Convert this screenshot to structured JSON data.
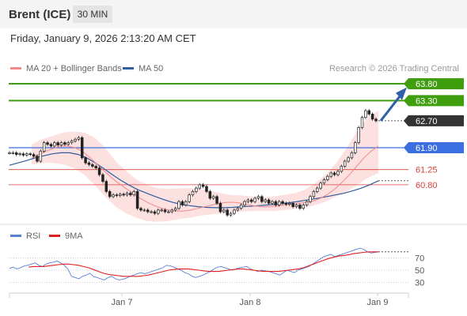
{
  "header": {
    "instrument": "Brent (ICE)",
    "timeframe": "30 MIN"
  },
  "datetime": "Friday, January 9, 2026 2:13:20 AM CET",
  "legend": {
    "bollinger": "MA 20 + Bollinger Bands",
    "ma50": "MA 50"
  },
  "credit": "Research © 2026 Trading Central",
  "rsi_legend": {
    "rsi": "RSI",
    "ma9": "9MA"
  },
  "colors": {
    "green": "#3f9e0e",
    "blue": "#3b6fe0",
    "red": "#d9403a",
    "dark": "#333333",
    "band": "#fde0e0",
    "candle": "#222222",
    "arrow": "#2e5fa8"
  },
  "chart_data": [
    {
      "type": "line",
      "title": "Brent (ICE)",
      "timeframe": "30 MIN",
      "x_labels": [
        "Jan 7",
        "Jan 8",
        "Jan 9"
      ],
      "ylim": [
        59.6,
        64.2
      ],
      "price_now": 62.7,
      "levels": [
        {
          "label": "63.80",
          "value": 63.8,
          "kind": "resistance",
          "color": "#3f9e0e"
        },
        {
          "label": "63.30",
          "value": 63.3,
          "kind": "resistance",
          "color": "#3f9e0e"
        },
        {
          "label": "62.70",
          "value": 62.7,
          "kind": "last",
          "color": "#333333"
        },
        {
          "label": "61.90",
          "value": 61.9,
          "kind": "pivot",
          "color": "#3b6fe0"
        },
        {
          "label": "61.25",
          "value": 61.25,
          "kind": "support",
          "color": "#d9403a"
        },
        {
          "label": "60.80",
          "value": 60.8,
          "kind": "support",
          "color": "#d9403a"
        }
      ],
      "close_series": [
        61.75,
        61.75,
        61.7,
        61.72,
        61.68,
        61.72,
        61.7,
        61.65,
        61.5,
        61.8,
        62.05,
        62.0,
        61.95,
        62.05,
        61.98,
        62.05,
        62.0,
        62.05,
        62.1,
        62.15,
        62.2,
        61.6,
        61.45,
        61.4,
        61.35,
        61.3,
        61.1,
        60.9,
        60.6,
        60.45,
        60.5,
        60.48,
        60.52,
        60.5,
        60.55,
        60.5,
        60.6,
        60.1,
        60.05,
        60.05,
        60.0,
        60.0,
        59.95,
        60.05,
        60.05,
        60.0,
        60.0,
        60.05,
        60.1,
        60.3,
        60.2,
        60.3,
        60.5,
        60.6,
        60.7,
        60.8,
        60.75,
        60.6,
        60.4,
        60.45,
        60.25,
        60.0,
        60.05,
        59.9,
        59.95,
        60.05,
        60.1,
        60.2,
        60.3,
        60.35,
        60.3,
        60.4,
        60.45,
        60.3,
        60.35,
        60.25,
        60.3,
        60.2,
        60.3,
        60.25,
        60.22,
        60.25,
        60.15,
        60.2,
        60.1,
        60.2,
        60.3,
        60.45,
        60.6,
        60.7,
        60.85,
        60.95,
        61.05,
        61.15,
        61.1,
        61.2,
        61.35,
        61.5,
        61.6,
        61.75,
        62.05,
        62.5,
        62.8,
        63.0,
        62.9,
        62.75,
        62.7
      ],
      "ma20_series": [
        61.6,
        61.7,
        61.8,
        61.88,
        61.95,
        61.95,
        61.9,
        61.8,
        61.62,
        61.42,
        61.22,
        61.02,
        60.85,
        60.7,
        60.55,
        60.4,
        60.28,
        60.18,
        60.1,
        60.05,
        60.02,
        60.02,
        60.05,
        60.1,
        60.15,
        60.2,
        60.25,
        60.28,
        60.28,
        60.25,
        60.2,
        60.17,
        60.15,
        60.15,
        60.17,
        60.2,
        60.22,
        60.25,
        60.28,
        60.32,
        60.4,
        60.52,
        60.68,
        60.88,
        61.1,
        61.35,
        61.6,
        61.8,
        61.95
      ],
      "ma50_series": [
        61.38,
        61.45,
        61.52,
        61.6,
        61.66,
        61.72,
        61.75,
        61.75,
        61.7,
        61.6,
        61.45,
        61.28,
        61.1,
        60.93,
        60.78,
        60.65,
        60.55,
        60.45,
        60.36,
        60.28,
        60.22,
        60.18,
        60.15,
        60.13,
        60.12,
        60.12,
        60.13,
        60.15,
        60.16,
        60.18,
        60.2,
        60.22,
        60.25,
        60.28,
        60.32,
        60.36,
        60.4,
        60.45,
        60.5,
        60.55,
        60.62,
        60.7,
        60.8,
        60.92
      ],
      "bollinger": {
        "upper": [
          62.0,
          62.15,
          62.25,
          62.35,
          62.38,
          62.35,
          62.2,
          61.9,
          61.5,
          61.2,
          60.95,
          60.8,
          60.7,
          60.68,
          60.7,
          60.7,
          60.68,
          60.62,
          60.55,
          60.5,
          60.48,
          60.45,
          60.42,
          60.45,
          60.5,
          60.55,
          60.65,
          60.85,
          61.1,
          61.45,
          61.9,
          62.4,
          62.8,
          63.0
        ],
        "lower": [
          61.4,
          61.45,
          61.45,
          61.4,
          61.3,
          61.1,
          60.8,
          60.45,
          60.15,
          59.95,
          59.82,
          59.72,
          59.7,
          59.72,
          59.78,
          59.82,
          59.88,
          59.92,
          59.95,
          59.98,
          60.0,
          60.02,
          60.02,
          60.02,
          60.05,
          60.08,
          60.12,
          60.2,
          60.3,
          60.45,
          60.6,
          60.8,
          61.0,
          61.15
        ]
      }
    },
    {
      "type": "line",
      "title": "RSI",
      "series_names": [
        "RSI",
        "9MA"
      ],
      "ylim": [
        20,
        90
      ],
      "y_ticks": [
        70,
        50,
        30
      ],
      "rsi_series": [
        53,
        55,
        52,
        54,
        57,
        58,
        60,
        62,
        58,
        56,
        60,
        62,
        63,
        65,
        62,
        58,
        52,
        40,
        38,
        36,
        40,
        42,
        45,
        40,
        38,
        36,
        34,
        38,
        40,
        36,
        34,
        35,
        37,
        40,
        42,
        44,
        46,
        44,
        46,
        48,
        50,
        52,
        54,
        58,
        57,
        55,
        52,
        50,
        46,
        44,
        40,
        38,
        40,
        42,
        45,
        48,
        52,
        55,
        56,
        54,
        52,
        50,
        52,
        54,
        55,
        56,
        52,
        50,
        48,
        50,
        49,
        48,
        46,
        44,
        42,
        46,
        50,
        48,
        46,
        50,
        52,
        54,
        56,
        60,
        64,
        68,
        72,
        74,
        76,
        72,
        74,
        76,
        78,
        80,
        82,
        84,
        86,
        84,
        80,
        78,
        79,
        80
      ],
      "ma9_series": [
        55,
        56,
        56,
        56,
        57,
        58,
        59,
        60,
        60,
        59,
        58,
        56,
        54,
        51,
        48,
        45,
        43,
        42,
        41,
        40,
        40,
        40,
        40,
        41,
        42,
        44,
        46,
        48,
        50,
        51,
        52,
        52,
        52,
        51,
        50,
        49,
        48,
        48,
        48,
        49,
        50,
        51,
        52,
        52,
        51,
        50,
        49,
        48,
        48,
        48,
        48,
        49,
        50,
        51,
        52,
        54,
        57,
        60,
        63,
        66,
        69,
        71,
        73,
        74,
        75,
        77,
        78,
        79,
        80,
        80,
        80
      ]
    }
  ]
}
